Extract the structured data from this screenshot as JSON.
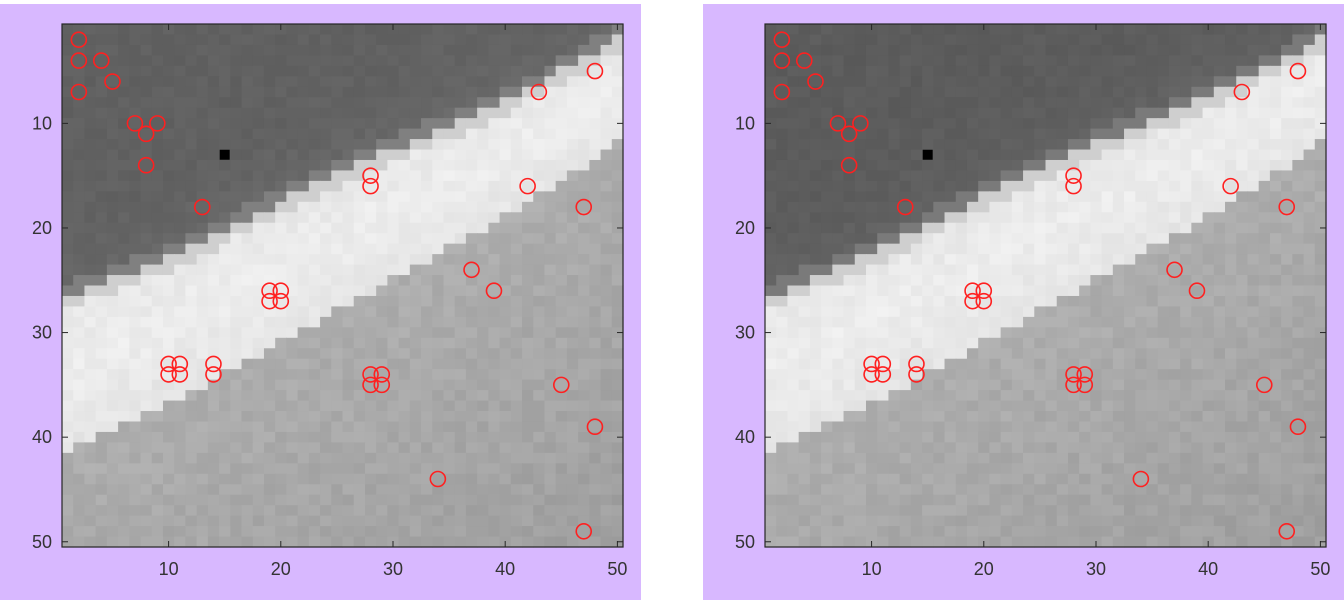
{
  "colors": {
    "background": "#d8b8ff",
    "marker": "#ff2020",
    "special_point": "#000000",
    "axis": "#262626",
    "tick_label": "#333333"
  },
  "chart_data": [
    {
      "type": "heatmap",
      "colormap": "gray",
      "xlim": [
        0.5,
        50.5
      ],
      "ylim": [
        0.5,
        50.5
      ],
      "y_reversed": true,
      "xticks": [
        10,
        20,
        30,
        40,
        50
      ],
      "yticks": [
        10,
        20,
        30,
        40,
        50
      ],
      "xtick_labels": [
        "10",
        "20",
        "30",
        "40",
        "50"
      ],
      "ytick_labels": [
        "10",
        "20",
        "30",
        "40",
        "50"
      ],
      "bands": {
        "dark_bright_boundary": [
          [
            1,
            26.5
          ],
          [
            10,
            23
          ],
          [
            20,
            17.5
          ],
          [
            30,
            12.5
          ],
          [
            40,
            8
          ],
          [
            50,
            2
          ]
        ],
        "bright_mid_boundary": [
          [
            1,
            41.5
          ],
          [
            10,
            37
          ],
          [
            20,
            31
          ],
          [
            30,
            25
          ],
          [
            40,
            19
          ],
          [
            50,
            12
          ]
        ]
      },
      "levels": {
        "dark": 0.38,
        "bright": 0.93,
        "mid": 0.68
      },
      "special_point": {
        "x": 15,
        "y": 13
      },
      "markers": [
        {
          "x": 2,
          "y": 2
        },
        {
          "x": 2,
          "y": 4
        },
        {
          "x": 4,
          "y": 4
        },
        {
          "x": 5,
          "y": 6
        },
        {
          "x": 2,
          "y": 7
        },
        {
          "x": 43,
          "y": 7
        },
        {
          "x": 48,
          "y": 5
        },
        {
          "x": 7,
          "y": 10
        },
        {
          "x": 9,
          "y": 10
        },
        {
          "x": 8,
          "y": 11
        },
        {
          "x": 8,
          "y": 14
        },
        {
          "x": 28,
          "y": 15
        },
        {
          "x": 28,
          "y": 16
        },
        {
          "x": 42,
          "y": 16
        },
        {
          "x": 13,
          "y": 18
        },
        {
          "x": 47,
          "y": 18
        },
        {
          "x": 37,
          "y": 24
        },
        {
          "x": 39,
          "y": 26
        },
        {
          "x": 19,
          "y": 26
        },
        {
          "x": 20,
          "y": 26
        },
        {
          "x": 19,
          "y": 27
        },
        {
          "x": 20,
          "y": 27
        },
        {
          "x": 10,
          "y": 33
        },
        {
          "x": 11,
          "y": 33
        },
        {
          "x": 10,
          "y": 34
        },
        {
          "x": 11,
          "y": 34
        },
        {
          "x": 14,
          "y": 33
        },
        {
          "x": 14,
          "y": 34
        },
        {
          "x": 28,
          "y": 34
        },
        {
          "x": 29,
          "y": 34
        },
        {
          "x": 28,
          "y": 35
        },
        {
          "x": 29,
          "y": 35
        },
        {
          "x": 45,
          "y": 35
        },
        {
          "x": 48,
          "y": 39
        },
        {
          "x": 34,
          "y": 44
        },
        {
          "x": 47,
          "y": 49
        }
      ]
    },
    {
      "type": "heatmap",
      "colormap": "gray",
      "xlim": [
        0.5,
        50.5
      ],
      "ylim": [
        0.5,
        50.5
      ],
      "y_reversed": true,
      "xticks": [
        10,
        20,
        30,
        40,
        50
      ],
      "yticks": [
        10,
        20,
        30,
        40,
        50
      ],
      "xtick_labels": [
        "10",
        "20",
        "30",
        "40",
        "50"
      ],
      "ytick_labels": [
        "10",
        "20",
        "30",
        "40",
        "50"
      ],
      "bands": {
        "dark_bright_boundary": [
          [
            1,
            26.5
          ],
          [
            10,
            22.5
          ],
          [
            20,
            17
          ],
          [
            30,
            12
          ],
          [
            40,
            7.5
          ],
          [
            50,
            2
          ]
        ],
        "bright_mid_boundary": [
          [
            1,
            41.5
          ],
          [
            10,
            37
          ],
          [
            20,
            31
          ],
          [
            30,
            25
          ],
          [
            40,
            19
          ],
          [
            50,
            12
          ]
        ]
      },
      "levels": {
        "dark": 0.36,
        "bright": 0.93,
        "mid": 0.68
      },
      "special_point": {
        "x": 15,
        "y": 13
      },
      "markers": [
        {
          "x": 2,
          "y": 2
        },
        {
          "x": 2,
          "y": 4
        },
        {
          "x": 4,
          "y": 4
        },
        {
          "x": 5,
          "y": 6
        },
        {
          "x": 2,
          "y": 7
        },
        {
          "x": 43,
          "y": 7
        },
        {
          "x": 48,
          "y": 5
        },
        {
          "x": 7,
          "y": 10
        },
        {
          "x": 9,
          "y": 10
        },
        {
          "x": 8,
          "y": 11
        },
        {
          "x": 8,
          "y": 14
        },
        {
          "x": 28,
          "y": 15
        },
        {
          "x": 28,
          "y": 16
        },
        {
          "x": 42,
          "y": 16
        },
        {
          "x": 13,
          "y": 18
        },
        {
          "x": 47,
          "y": 18
        },
        {
          "x": 37,
          "y": 24
        },
        {
          "x": 39,
          "y": 26
        },
        {
          "x": 19,
          "y": 26
        },
        {
          "x": 20,
          "y": 26
        },
        {
          "x": 19,
          "y": 27
        },
        {
          "x": 20,
          "y": 27
        },
        {
          "x": 10,
          "y": 33
        },
        {
          "x": 11,
          "y": 33
        },
        {
          "x": 10,
          "y": 34
        },
        {
          "x": 11,
          "y": 34
        },
        {
          "x": 14,
          "y": 33
        },
        {
          "x": 14,
          "y": 34
        },
        {
          "x": 28,
          "y": 34
        },
        {
          "x": 29,
          "y": 34
        },
        {
          "x": 28,
          "y": 35
        },
        {
          "x": 29,
          "y": 35
        },
        {
          "x": 45,
          "y": 35
        },
        {
          "x": 48,
          "y": 39
        },
        {
          "x": 34,
          "y": 44
        },
        {
          "x": 47,
          "y": 49
        }
      ]
    }
  ]
}
